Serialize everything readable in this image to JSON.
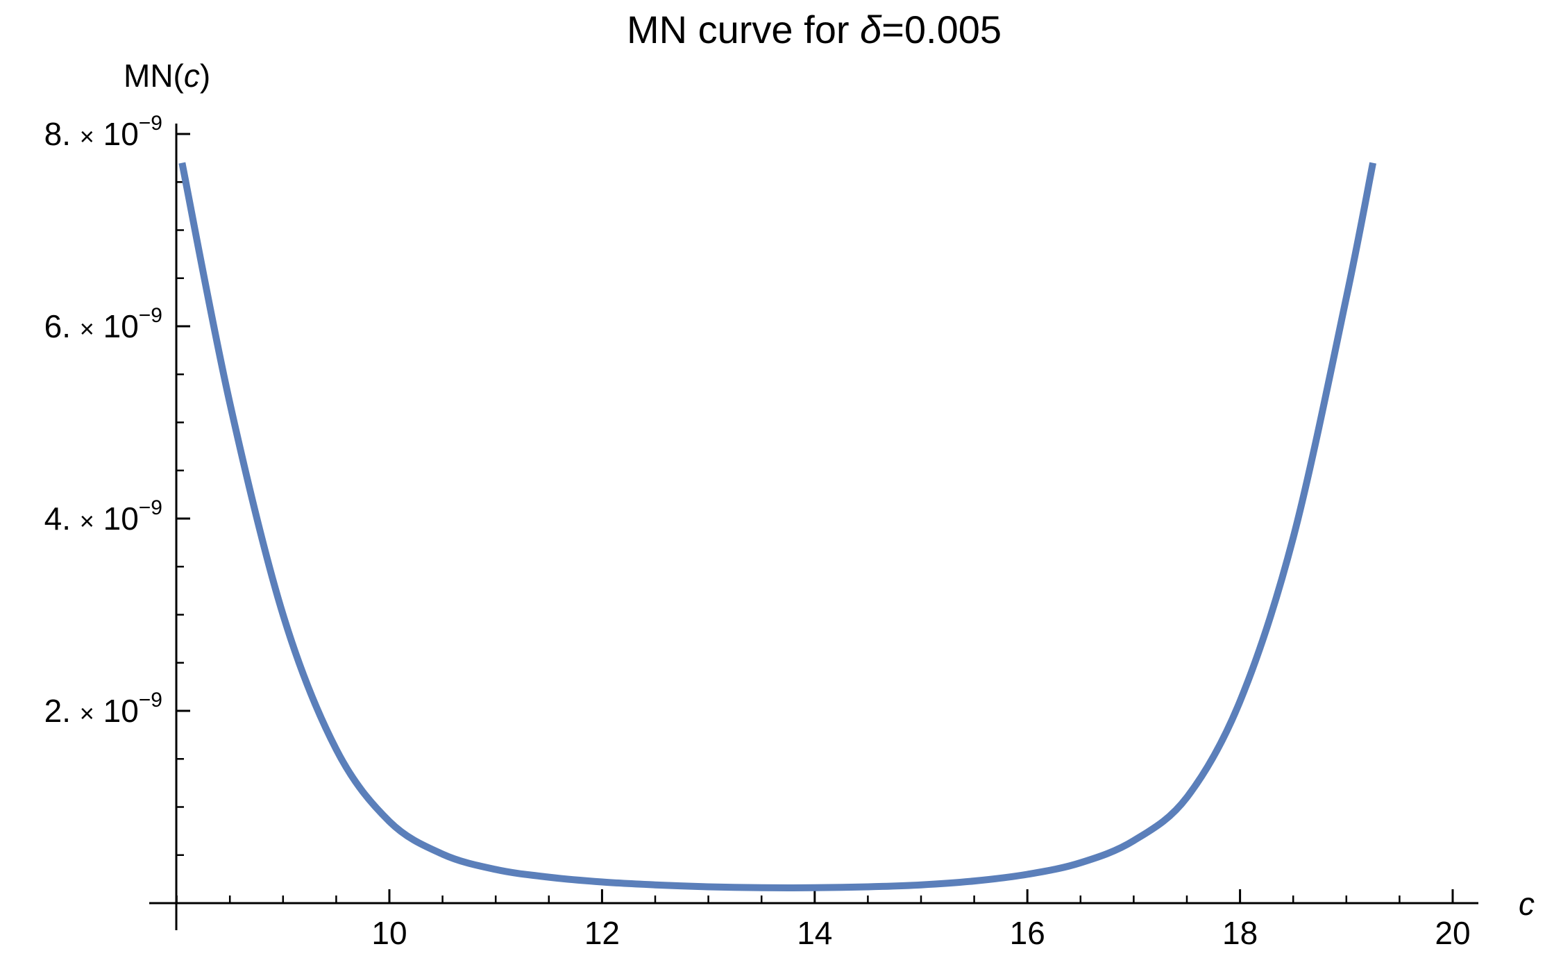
{
  "chart_data": {
    "type": "line",
    "title_prefix": "MN curve for ",
    "title_symbol": "δ",
    "title_suffix": "=0.005",
    "xlabel": "c",
    "ylabel_prefix": "MN(",
    "ylabel_var": "c",
    "ylabel_suffix": ")",
    "xlim": [
      8,
      20.5
    ],
    "ylim": [
      0,
      8e-09
    ],
    "x_major_ticks": [
      10,
      12,
      14,
      16,
      18,
      20
    ],
    "x_tick_labels": [
      "10",
      "12",
      "14",
      "16",
      "18",
      "20"
    ],
    "x_minor_step": 0.5,
    "y_major_ticks": [
      2e-09,
      4e-09,
      6e-09,
      8e-09
    ],
    "y_tick_mantissas": [
      "2.",
      "4.",
      "6.",
      "8."
    ],
    "y_tick_times": "×",
    "y_tick_base": "10",
    "y_tick_exponent": "−9",
    "y_minor_step": 5e-10,
    "grid": false,
    "series_color": "#5b7fba",
    "series": [
      {
        "x": [
          8.05,
          8.5,
          9.0,
          9.5,
          10.0,
          10.5,
          11.0,
          11.5,
          12.0,
          12.5,
          13.0,
          13.5,
          14.0,
          14.5,
          15.0,
          15.5,
          16.0,
          16.5,
          17.0,
          17.5,
          18.0,
          18.5,
          19.0,
          19.25
        ],
        "y": [
          7.7e-09,
          5.2e-09,
          3e-09,
          1.6e-09,
          8.5e-10,
          5.1e-10,
          3.5e-10,
          2.7e-10,
          2.2e-10,
          1.9e-10,
          1.7e-10,
          1.6e-10,
          1.6e-10,
          1.7e-10,
          1.9e-10,
          2.3e-10,
          3e-10,
          4.2e-10,
          6.5e-10,
          1.1e-09,
          2.1e-09,
          3.8e-09,
          6.3e-09,
          7.7e-09
        ]
      }
    ]
  }
}
